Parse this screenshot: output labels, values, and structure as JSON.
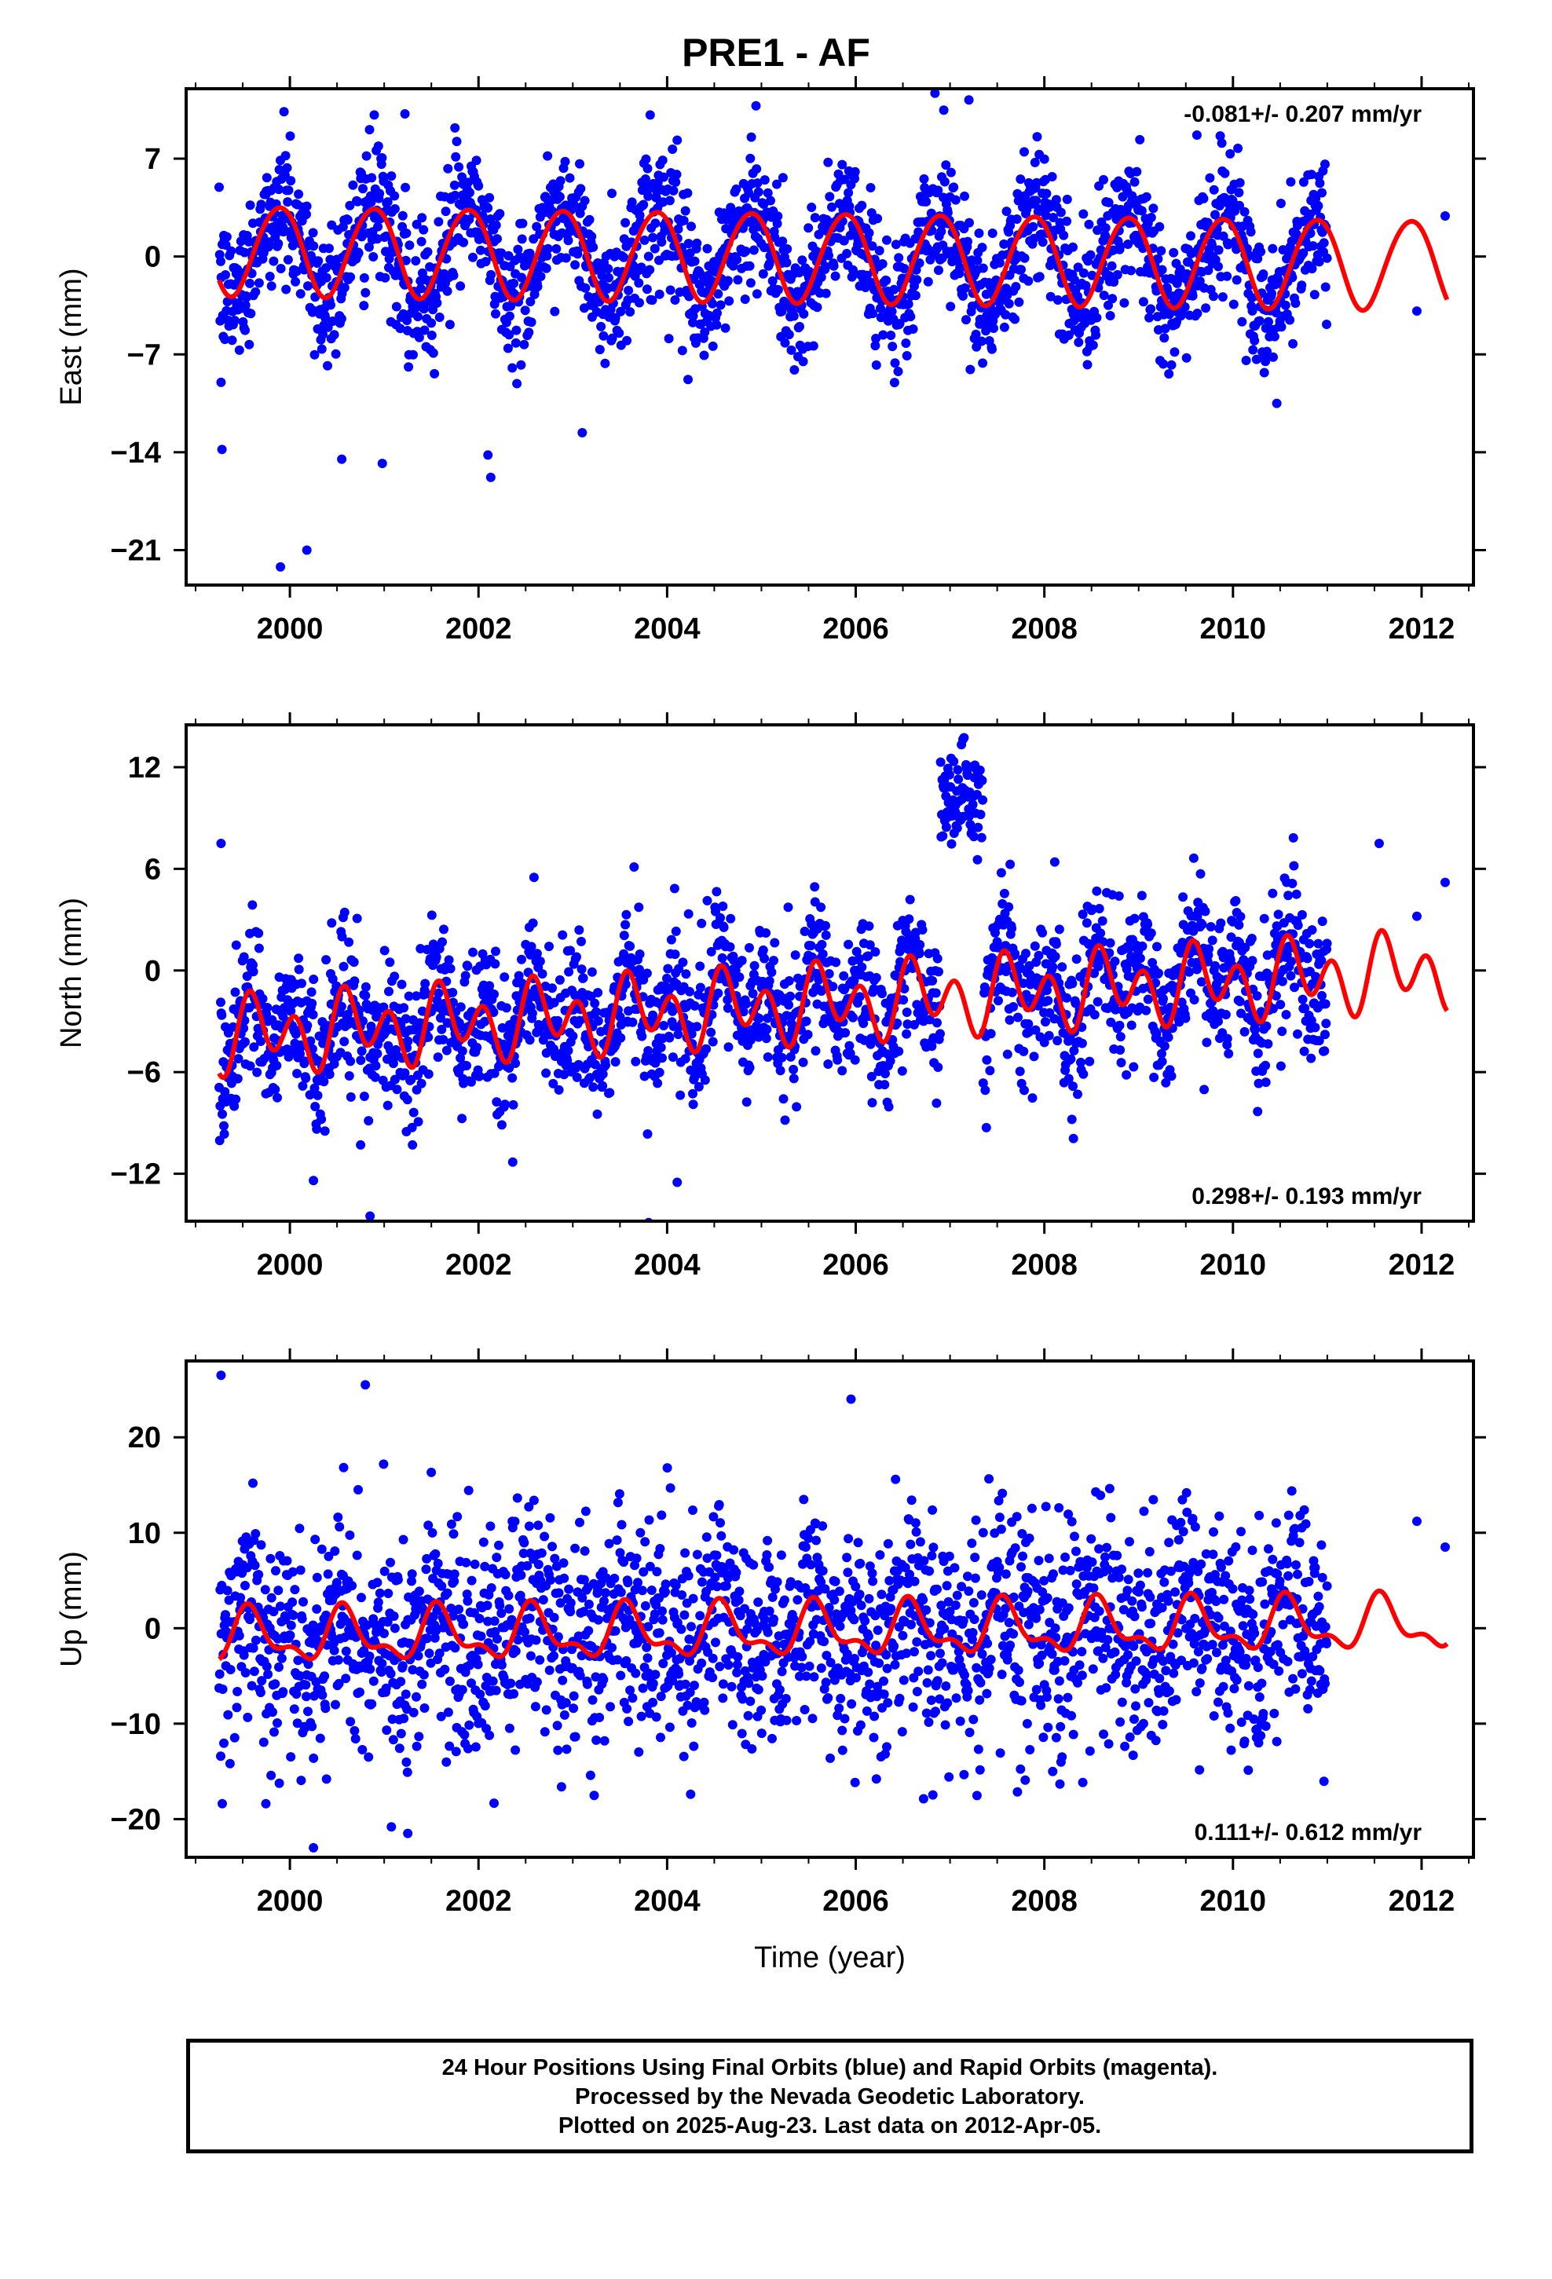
{
  "title": "PRE1 - AF",
  "colors": {
    "data": "#0000ff",
    "model": "#ff0000",
    "axes": "#000000"
  },
  "chart_data": [
    {
      "type": "scatter",
      "component": "east",
      "ylabel": "East (mm)",
      "xlabel": "",
      "rate_text": "-0.081+/- 0.207 mm/yr",
      "rate_position": "top-right",
      "xlim": [
        1998.9,
        2012.55
      ],
      "ylim": [
        -23.5,
        12
      ],
      "x_ticks": [
        2000,
        2002,
        2004,
        2006,
        2008,
        2010,
        2012
      ],
      "x_tick_labels": [
        "2000",
        "2002",
        "2004",
        "2006",
        "2008",
        "2010",
        "2012"
      ],
      "y_ticks": [
        -21,
        -14,
        -7,
        0,
        7
      ],
      "y_tick_labels": [
        "−21",
        "−14",
        "−7",
        "0",
        "7"
      ],
      "data_start": 1999.25,
      "data_end": 2012.27,
      "gap": [
        2011.0,
        2012.25
      ],
      "seasonal_model": {
        "offset": 0.0,
        "trend": -0.081,
        "annual_amp": 3.2,
        "annual_phase": 2.3,
        "semiannual_amp": 0.2,
        "semiannual_phase": 0.4,
        "x_start": 1999.25,
        "x_end": 2012.27
      },
      "scatter_noise": 2.4,
      "outliers": [
        [
          1999.28,
          -13.8
        ],
        [
          1999.27,
          -9.0
        ],
        [
          1999.9,
          -22.2
        ],
        [
          2000.18,
          -21.0
        ],
        [
          2000.55,
          -14.5
        ],
        [
          2000.98,
          -14.8
        ],
        [
          2001.22,
          10.2
        ],
        [
          2001.75,
          9.2
        ],
        [
          2002.13,
          -15.8
        ],
        [
          2002.1,
          -14.2
        ],
        [
          2003.1,
          -12.6
        ],
        [
          2007.2,
          11.2
        ],
        [
          2011.95,
          -3.9
        ],
        [
          2012.25,
          2.9
        ]
      ]
    },
    {
      "type": "scatter",
      "component": "north",
      "ylabel": "North (mm)",
      "xlabel": "",
      "rate_text": "0.298+/- 0.193 mm/yr",
      "rate_position": "bottom-right",
      "xlim": [
        1998.9,
        2012.55
      ],
      "ylim": [
        -14.8,
        14.5
      ],
      "x_ticks": [
        2000,
        2002,
        2004,
        2006,
        2008,
        2010,
        2012
      ],
      "x_tick_labels": [
        "2000",
        "2002",
        "2004",
        "2006",
        "2008",
        "2010",
        "2012"
      ],
      "y_ticks": [
        -12,
        -6,
        0,
        6,
        12
      ],
      "y_tick_labels": [
        "−12",
        "−6",
        "0",
        "6",
        "12"
      ],
      "data_start": 1999.25,
      "data_end": 2012.27,
      "gap": [
        2011.0,
        2012.25
      ],
      "offset_episode": {
        "x0": 2006.9,
        "x1": 2007.35,
        "level": 10.0
      },
      "seasonal_model": {
        "offset": -2.0,
        "trend": 0.298,
        "annual_amp": 1.1,
        "annual_phase": 3.6,
        "semiannual_amp": 1.7,
        "semiannual_phase": 0.8,
        "x_start": 1999.25,
        "x_end": 2012.27
      },
      "scatter_noise": 2.1,
      "outliers": [
        [
          1999.27,
          7.5
        ],
        [
          2000.85,
          -14.5
        ],
        [
          2000.25,
          -12.4
        ],
        [
          2000.75,
          -10.3
        ],
        [
          2001.3,
          -10.3
        ],
        [
          2011.55,
          7.5
        ],
        [
          2012.25,
          5.2
        ],
        [
          2011.95,
          3.2
        ]
      ]
    },
    {
      "type": "scatter",
      "component": "up",
      "ylabel": "Up (mm)",
      "xlabel": "Time (year)",
      "rate_text": "0.111+/- 0.612 mm/yr",
      "rate_position": "bottom-right",
      "xlim": [
        1998.9,
        2012.55
      ],
      "ylim": [
        -24,
        28
      ],
      "x_ticks": [
        2000,
        2002,
        2004,
        2006,
        2008,
        2010,
        2012
      ],
      "x_tick_labels": [
        "2000",
        "2002",
        "2004",
        "2006",
        "2008",
        "2010",
        "2012"
      ],
      "y_ticks": [
        -20,
        -10,
        0,
        10,
        20
      ],
      "y_tick_labels": [
        "−20",
        "−10",
        "0",
        "10",
        "20"
      ],
      "data_start": 1999.25,
      "data_end": 2012.27,
      "gap": [
        2011.0,
        2012.25
      ],
      "seasonal_model": {
        "offset": -0.3,
        "trend": 0.111,
        "annual_amp": 2.4,
        "annual_phase": 4.2,
        "semiannual_amp": 1.2,
        "semiannual_phase": 1.1,
        "x_start": 1999.25,
        "x_end": 2012.27
      },
      "scatter_noise": 5.6,
      "outliers": [
        [
          1999.27,
          26.5
        ],
        [
          2000.8,
          25.5
        ],
        [
          2005.95,
          24.0
        ],
        [
          2000.25,
          -23.0
        ],
        [
          2001.25,
          -21.5
        ],
        [
          2011.95,
          11.2
        ],
        [
          2012.25,
          8.5
        ]
      ]
    }
  ],
  "footer": {
    "line1": "24 Hour Positions Using Final Orbits (blue) and Rapid Orbits (magenta).",
    "line2": "Processed by the Nevada Geodetic Laboratory.",
    "line3": "Plotted on 2025-Aug-23. Last data on 2012-Apr-05."
  }
}
